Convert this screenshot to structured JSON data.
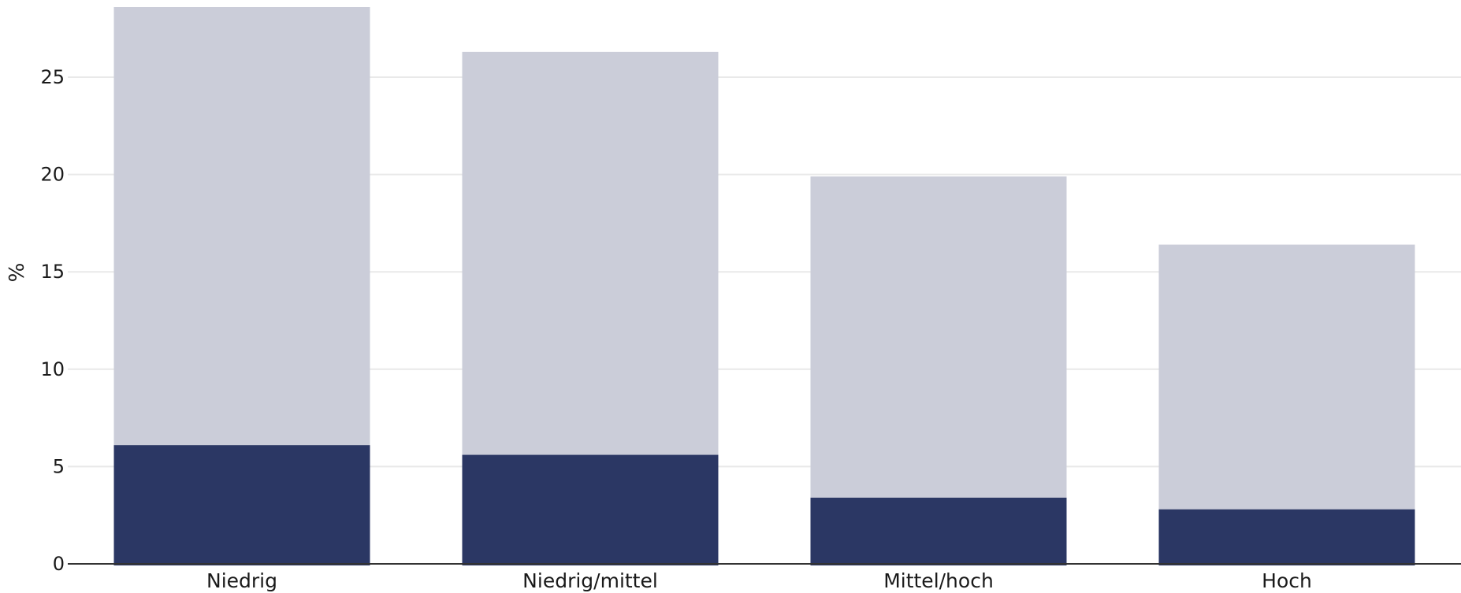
{
  "chart_data": {
    "type": "bar",
    "stacked": false,
    "overlap": true,
    "categories": [
      "Niedrig",
      "Niedrig/mittel",
      "Mittel/hoch",
      "Hoch"
    ],
    "series": [
      {
        "values": [
          28.6,
          26.3,
          19.9,
          16.4
        ],
        "color": "#cbcdd9"
      },
      {
        "values": [
          6.1,
          5.6,
          3.4,
          2.8
        ],
        "color": "#2b3764"
      }
    ],
    "title": "",
    "xlabel": "",
    "ylabel": "%",
    "ylim": [
      0,
      28.6
    ],
    "yticks": [
      0,
      5,
      10,
      15,
      20,
      25
    ],
    "grid": true,
    "legend": "none",
    "gridColor": "#e9e9e9",
    "axisColor": "#333333"
  }
}
